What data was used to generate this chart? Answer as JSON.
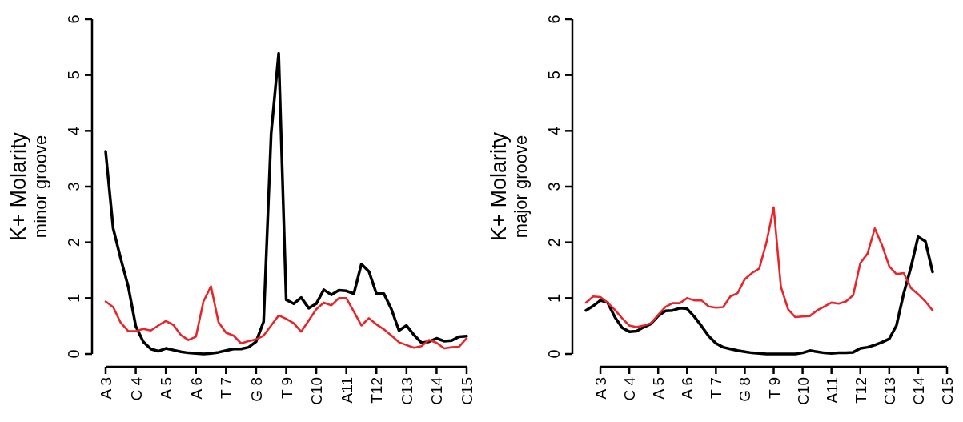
{
  "chart_data": [
    {
      "type": "line",
      "ylabel": "K+ Molarity",
      "subtitle": "minor groove",
      "categories": [
        "A 3",
        null,
        null,
        null,
        "C 4",
        null,
        null,
        null,
        "A 5",
        null,
        null,
        null,
        "A 6",
        null,
        null,
        null,
        "T 7",
        null,
        null,
        null,
        "G 8",
        null,
        null,
        null,
        "T 9",
        null,
        null,
        null,
        "C10",
        null,
        null,
        null,
        "A11",
        null,
        null,
        null,
        "T12",
        null,
        null,
        null,
        "C13",
        null,
        null,
        null,
        "C14",
        null,
        null,
        null,
        "C15"
      ],
      "ylim": [
        0,
        6
      ],
      "yticks": [
        0,
        1,
        2,
        3,
        4,
        5,
        6
      ],
      "line_style": "solid",
      "series": [
        {
          "color": "#000000",
          "values": [
            3.63,
            2.25,
            1.71,
            1.21,
            0.5,
            0.22,
            0.09,
            0.05,
            0.1,
            0.07,
            0.04,
            0.02,
            0.01,
            0,
            0.01,
            0.03,
            0.06,
            0.09,
            0.09,
            0.12,
            0.22,
            0.58,
            3.95,
            5.39,
            0.97,
            0.9,
            1.01,
            0.82,
            0.9,
            1.15,
            1.06,
            1.14,
            1.13,
            1.08,
            1.61,
            1.48,
            1.08,
            1.08,
            0.8,
            0.42,
            0.51,
            0.34,
            0.2,
            0.22,
            0.28,
            0.23,
            0.24,
            0.31,
            0.32
          ]
        },
        {
          "color": "#e8262a",
          "values": [
            0.94,
            0.84,
            0.56,
            0.41,
            0.41,
            0.45,
            0.42,
            0.51,
            0.59,
            0.52,
            0.34,
            0.25,
            0.31,
            0.94,
            1.21,
            0.57,
            0.38,
            0.33,
            0.19,
            0.23,
            0.26,
            0.33,
            0.51,
            0.69,
            0.63,
            0.55,
            0.4,
            0.6,
            0.8,
            0.92,
            0.87,
            1.0,
            1.0,
            0.76,
            0.51,
            0.64,
            0.53,
            0.44,
            0.33,
            0.21,
            0.16,
            0.11,
            0.14,
            0.25,
            0.2,
            0.1,
            0.12,
            0.13,
            0.28
          ]
        }
      ]
    },
    {
      "type": "line",
      "ylabel": "K+ Molarity",
      "subtitle": "major groove",
      "categories": [
        null,
        null,
        "A 3",
        null,
        null,
        null,
        "C 4",
        null,
        null,
        null,
        "A 5",
        null,
        null,
        null,
        "A 6",
        null,
        null,
        null,
        "T 7",
        null,
        null,
        null,
        "G 8",
        null,
        null,
        null,
        "T 9",
        null,
        null,
        null,
        "C10",
        null,
        null,
        null,
        "A11",
        null,
        null,
        null,
        "T12",
        null,
        null,
        null,
        "C13",
        null,
        null,
        null,
        "C14",
        null,
        null,
        null,
        "C15"
      ],
      "ylim": [
        0,
        6
      ],
      "yticks": [
        0,
        1,
        2,
        3,
        4,
        5,
        6
      ],
      "line_style": "solid",
      "series": [
        {
          "color": "#000000",
          "values": [
            0.78,
            0.86,
            0.96,
            0.92,
            0.66,
            0.47,
            0.4,
            0.41,
            0.48,
            0.54,
            0.68,
            0.77,
            0.78,
            0.82,
            0.81,
            0.67,
            0.5,
            0.32,
            0.19,
            0.12,
            0.09,
            0.06,
            0.04,
            0.02,
            0.01,
            0,
            0,
            0,
            0,
            0,
            0.02,
            0.06,
            0.04,
            0.02,
            0.01,
            0.02,
            0.02,
            0.03,
            0.1,
            0.12,
            0.16,
            0.21,
            0.27,
            0.51,
            1.08,
            1.55,
            2.1,
            2.02,
            1.47,
            null,
            null
          ]
        },
        {
          "color": "#e8262a",
          "values": [
            0.92,
            1.03,
            1.02,
            0.92,
            0.79,
            0.64,
            0.51,
            0.48,
            0.51,
            0.55,
            0.7,
            0.84,
            0.91,
            0.91,
            1.0,
            0.96,
            0.96,
            0.85,
            0.83,
            0.84,
            1.03,
            1.09,
            1.34,
            1.45,
            1.53,
            2.0,
            2.63,
            1.2,
            0.8,
            0.66,
            0.67,
            0.68,
            0.78,
            0.85,
            0.92,
            0.9,
            0.94,
            1.05,
            1.63,
            1.8,
            2.25,
            1.95,
            1.57,
            1.43,
            1.45,
            1.18,
            1.07,
            0.94,
            0.78,
            null,
            null
          ]
        }
      ]
    }
  ]
}
